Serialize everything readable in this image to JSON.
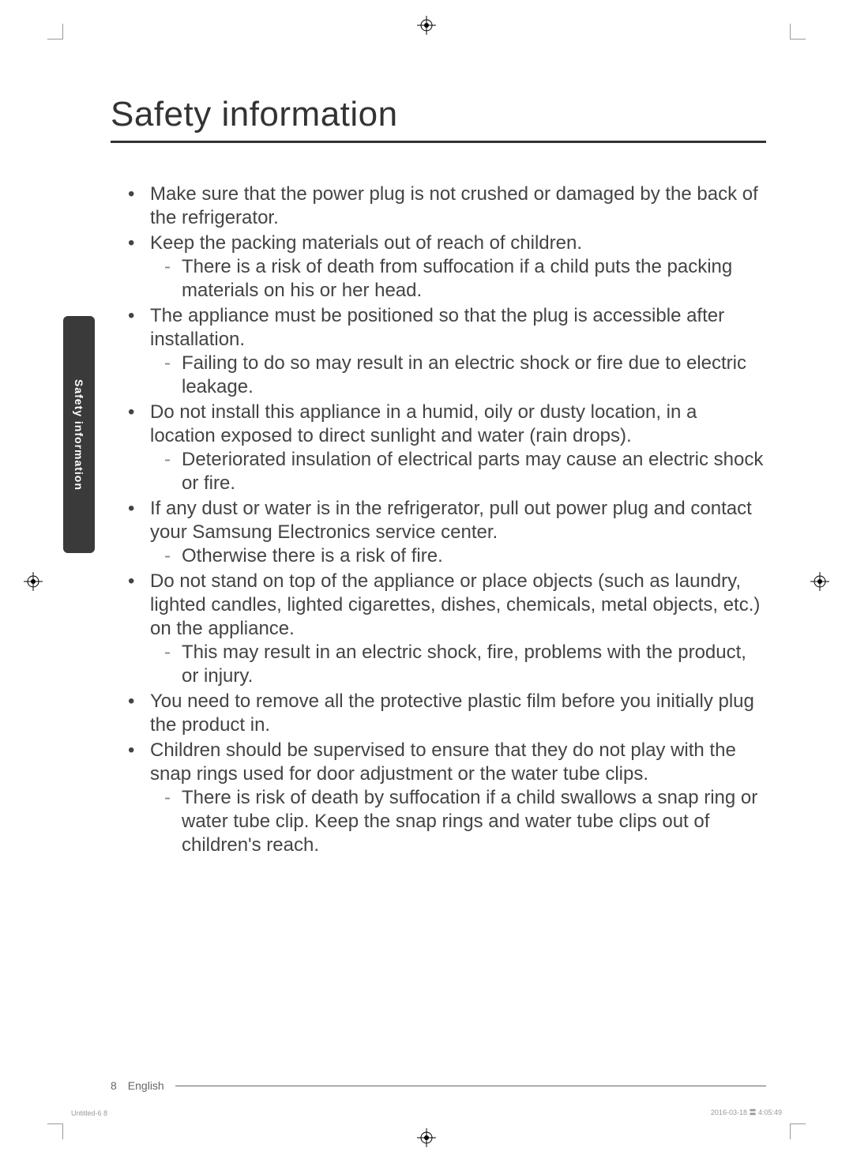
{
  "title": "Safety information",
  "sidebar_label": "Safety information",
  "bullets": [
    {
      "text": "Make sure that the power plug is not crushed or damaged by the back of the refrigerator.",
      "subs": []
    },
    {
      "text": "Keep the packing materials out of reach of children.",
      "subs": [
        "There is a risk of death from suffocation if a child puts the packing materials on his or her head."
      ]
    },
    {
      "text": "The appliance must be positioned so that the plug is accessible after installation.",
      "subs": [
        "Failing to do so may result in an electric shock or fire due to electric leakage."
      ]
    },
    {
      "text": "Do not install this appliance in a humid, oily or dusty location, in a location exposed to direct sunlight and water (rain drops).",
      "subs": [
        "Deteriorated insulation of electrical parts may cause an electric shock or fire."
      ]
    },
    {
      "text": "If any dust or water is in the refrigerator, pull out power plug and contact your Samsung Electronics service center.",
      "subs": [
        "Otherwise there is a risk of fire."
      ]
    },
    {
      "text": "Do not stand on top of the appliance or place objects (such as laundry, lighted candles, lighted cigarettes, dishes, chemicals, metal objects, etc.) on the appliance.",
      "subs": [
        "This may result in an electric shock, fire, problems with the product, or injury."
      ]
    },
    {
      "text": "You need to remove all the protective plastic film before you initially plug the product in.",
      "subs": []
    },
    {
      "text": "Children should be supervised to ensure that they do not play with the snap rings used for door adjustment or the water tube clips.",
      "subs": [
        "There is risk of death by suffocation if a child swallows a snap ring or water tube clip. Keep the snap rings and water tube clips out of children's reach."
      ]
    }
  ],
  "footer": {
    "pagenum": "8",
    "lang": "English"
  },
  "meta": {
    "left": "Untitled-6   8",
    "right": "2016-03-18   〓 4:05:49"
  }
}
